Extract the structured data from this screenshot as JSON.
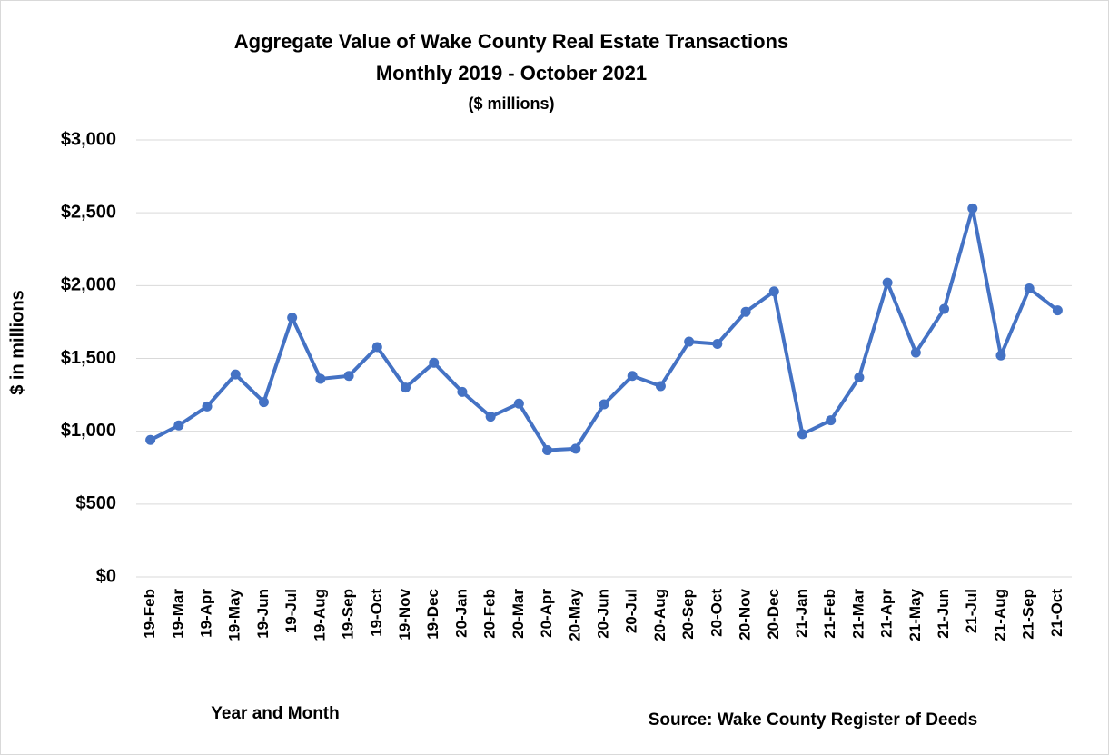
{
  "chart_data": {
    "type": "line",
    "title": [
      "Aggregate Value of Wake County Real Estate Transactions",
      "Monthly 2019 - October 2021"
    ],
    "subtitle": "($ millions)",
    "x_label": "Year and Month",
    "y_label": "$ in millions",
    "source": "Source: Wake County Register of Deeds",
    "categories": [
      "19-Feb",
      "19-Mar",
      "19-Apr",
      "19-May",
      "19-Jun",
      "19-Jul",
      "19-Aug",
      "19-Sep",
      "19-Oct",
      "19-Nov",
      "19-Dec",
      "20-Jan",
      "20-Feb",
      "20-Mar",
      "20-Apr",
      "20-May",
      "20-Jun",
      "20-Jul",
      "20-Aug",
      "20-Sep",
      "20-Oct",
      "20-Nov",
      "20-Dec",
      "21-Jan",
      "21-Feb",
      "21-Mar",
      "21-Apr",
      "21-May",
      "21-Jun",
      "21-Jul",
      "21-Aug",
      "21-Sep",
      "21-Oct"
    ],
    "values": [
      940,
      1040,
      1170,
      1390,
      1200,
      1780,
      1360,
      1380,
      1578,
      1300,
      1470,
      1270,
      1100,
      1190,
      870,
      880,
      1185,
      1380,
      1310,
      1615,
      1600,
      1820,
      1960,
      980,
      1075,
      1370,
      2020,
      1540,
      1840,
      2530,
      1520,
      1980,
      1830
    ],
    "color": "#4472c4",
    "ylim": [
      0,
      3000
    ],
    "yticks": [
      {
        "value": 0,
        "label": "$0"
      },
      {
        "value": 500,
        "label": "$500"
      },
      {
        "value": 1000,
        "label": "$1,000"
      },
      {
        "value": 1500,
        "label": "$1,500"
      },
      {
        "value": 2000,
        "label": "$2,000"
      },
      {
        "value": 2500,
        "label": "$2,500"
      },
      {
        "value": 3000,
        "label": "$3,000"
      }
    ],
    "grid": true
  }
}
